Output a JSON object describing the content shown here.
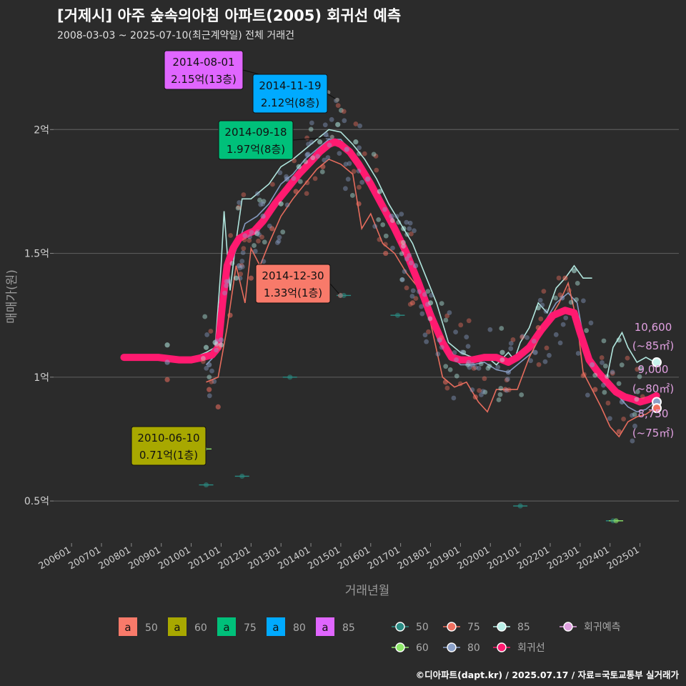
{
  "title": "[거제시] 아주 숲속의아침 아파트(2005) 회귀선 예측",
  "subtitle": "2008-03-03 ~ 2025-07-10(최근계약일) 전체 거래건",
  "footer": "©디아파트(dapt.kr) / 2025.07.17 / 자료=국토교통부 실거래가",
  "chart_data": {
    "type": "scatter",
    "xlabel": "거래년월",
    "ylabel": "매매가(원)",
    "x_ticks": [
      "200601",
      "200701",
      "200801",
      "200901",
      "201001",
      "201101",
      "201201",
      "201301",
      "201401",
      "201501",
      "201601",
      "201701",
      "201801",
      "201901",
      "202001",
      "202101",
      "202201",
      "202301",
      "202401",
      "202501"
    ],
    "y_ticks": [
      {
        "value": 0.5,
        "label": "0.5억"
      },
      {
        "value": 1.0,
        "label": "1억"
      },
      {
        "value": 1.5,
        "label": "1.5억"
      },
      {
        "value": 2.0,
        "label": "2억"
      }
    ],
    "xlim": [
      2005.4,
      2026.3
    ],
    "ylim": [
      0.33,
      2.35
    ],
    "colors": {
      "50": "#2a8c84",
      "60": "#8ee86a",
      "75": "#f07060",
      "80": "#8aa0c8",
      "85": "#b8f0e8",
      "regression": "#ff1a70",
      "prediction": "#e0a0e0"
    },
    "annotations": [
      {
        "date": "2014-08-01",
        "value": "2.15억(13층)",
        "color": "#e066ff",
        "x": 2014.58,
        "y": 2.15
      },
      {
        "date": "2014-11-19",
        "value": "2.12억(8층)",
        "color": "#00aaff",
        "x": 2014.88,
        "y": 2.12
      },
      {
        "date": "2014-09-18",
        "value": "1.97억(8층)",
        "color": "#00c07a",
        "x": 2014.71,
        "y": 1.97
      },
      {
        "date": "2014-12-30",
        "value": "1.33억(1층)",
        "color": "#f87a6a",
        "x": 2014.99,
        "y": 1.33
      },
      {
        "date": "2010-06-10",
        "value": "0.71억(1층)",
        "color": "#a8a800",
        "x": 2010.44,
        "y": 0.71
      }
    ],
    "predictions": [
      {
        "price": "10,600",
        "area": "(~85㎡)",
        "y": 1.06,
        "color": "#c8f4ee"
      },
      {
        "price": "9,000",
        "area": "(~80㎡)",
        "y": 0.9,
        "color": "#8aa0c8"
      },
      {
        "price": "8,750",
        "area": "(~75㎡)",
        "y": 0.875,
        "color": "#f07060"
      }
    ],
    "regression": [
      [
        2007.75,
        1.08
      ],
      [
        2008.4,
        1.08
      ],
      [
        2008.9,
        1.08
      ],
      [
        2009.6,
        1.07
      ],
      [
        2010.0,
        1.07
      ],
      [
        2010.4,
        1.08
      ],
      [
        2010.7,
        1.09
      ],
      [
        2010.9,
        1.12
      ],
      [
        2011.05,
        1.3
      ],
      [
        2011.2,
        1.45
      ],
      [
        2011.4,
        1.52
      ],
      [
        2011.6,
        1.56
      ],
      [
        2011.9,
        1.58
      ],
      [
        2012.1,
        1.59
      ],
      [
        2012.4,
        1.63
      ],
      [
        2012.8,
        1.7
      ],
      [
        2013.2,
        1.76
      ],
      [
        2013.6,
        1.82
      ],
      [
        2014.0,
        1.87
      ],
      [
        2014.3,
        1.91
      ],
      [
        2014.6,
        1.94
      ],
      [
        2014.8,
        1.95
      ],
      [
        2015.0,
        1.94
      ],
      [
        2015.3,
        1.91
      ],
      [
        2015.6,
        1.86
      ],
      [
        2016.0,
        1.78
      ],
      [
        2016.4,
        1.69
      ],
      [
        2016.8,
        1.6
      ],
      [
        2017.2,
        1.5
      ],
      [
        2017.6,
        1.38
      ],
      [
        2018.0,
        1.25
      ],
      [
        2018.4,
        1.14
      ],
      [
        2018.7,
        1.08
      ],
      [
        2019.0,
        1.07
      ],
      [
        2019.4,
        1.07
      ],
      [
        2019.8,
        1.08
      ],
      [
        2020.2,
        1.08
      ],
      [
        2020.6,
        1.06
      ],
      [
        2020.9,
        1.08
      ],
      [
        2021.3,
        1.12
      ],
      [
        2021.7,
        1.19
      ],
      [
        2022.1,
        1.25
      ],
      [
        2022.5,
        1.27
      ],
      [
        2022.8,
        1.26
      ],
      [
        2023.0,
        1.18
      ],
      [
        2023.3,
        1.07
      ],
      [
        2023.6,
        1.02
      ],
      [
        2023.9,
        0.98
      ],
      [
        2024.2,
        0.94
      ],
      [
        2024.5,
        0.92
      ],
      [
        2024.8,
        0.91
      ],
      [
        2025.0,
        0.9
      ],
      [
        2025.3,
        0.91
      ],
      [
        2025.55,
        0.925
      ]
    ],
    "lines": [
      {
        "area": "85",
        "points": [
          [
            2010.1,
            1.08
          ],
          [
            2010.5,
            1.1
          ],
          [
            2010.8,
            1.12
          ],
          [
            2011.0,
            1.45
          ],
          [
            2011.1,
            1.67
          ],
          [
            2011.3,
            1.35
          ],
          [
            2011.5,
            1.55
          ],
          [
            2011.7,
            1.72
          ],
          [
            2012.0,
            1.72
          ],
          [
            2012.3,
            1.75
          ],
          [
            2012.6,
            1.78
          ],
          [
            2013.0,
            1.85
          ],
          [
            2013.4,
            1.88
          ],
          [
            2013.8,
            1.92
          ],
          [
            2014.2,
            1.96
          ],
          [
            2014.6,
            2.0
          ],
          [
            2015.0,
            1.99
          ],
          [
            2015.4,
            1.94
          ],
          [
            2015.8,
            1.88
          ],
          [
            2016.2,
            1.8
          ],
          [
            2016.6,
            1.7
          ],
          [
            2017.0,
            1.62
          ],
          [
            2017.4,
            1.54
          ],
          [
            2017.8,
            1.42
          ],
          [
            2018.2,
            1.3
          ],
          [
            2018.6,
            1.14
          ],
          [
            2019.0,
            1.1
          ],
          [
            2019.4,
            1.08
          ],
          [
            2019.8,
            1.09
          ],
          [
            2020.2,
            1.05
          ],
          [
            2020.6,
            1.1
          ],
          [
            2020.8,
            1.07
          ],
          [
            2021.0,
            1.14
          ],
          [
            2021.3,
            1.2
          ],
          [
            2021.6,
            1.3
          ],
          [
            2021.9,
            1.26
          ],
          [
            2022.2,
            1.36
          ],
          [
            2022.5,
            1.4
          ],
          [
            2022.8,
            1.45
          ],
          [
            2023.1,
            1.4
          ],
          [
            2023.4,
            1.4
          ]
        ]
      },
      {
        "area": "85b",
        "points": [
          [
            2023.9,
            1.0
          ],
          [
            2024.1,
            1.12
          ],
          [
            2024.4,
            1.18
          ],
          [
            2024.6,
            1.12
          ],
          [
            2024.9,
            1.06
          ],
          [
            2025.2,
            1.08
          ],
          [
            2025.5,
            1.06
          ]
        ]
      },
      {
        "area": "80",
        "points": [
          [
            2010.5,
            1.05
          ],
          [
            2010.9,
            1.1
          ],
          [
            2011.1,
            1.42
          ],
          [
            2011.4,
            1.48
          ],
          [
            2011.8,
            1.62
          ],
          [
            2012.2,
            1.65
          ],
          [
            2012.6,
            1.7
          ],
          [
            2013.0,
            1.78
          ],
          [
            2013.4,
            1.82
          ],
          [
            2013.8,
            1.88
          ],
          [
            2014.2,
            1.92
          ],
          [
            2014.6,
            1.96
          ],
          [
            2015.0,
            1.96
          ],
          [
            2015.4,
            1.9
          ],
          [
            2015.8,
            1.82
          ],
          [
            2016.2,
            1.72
          ],
          [
            2016.6,
            1.64
          ],
          [
            2017.0,
            1.56
          ],
          [
            2017.4,
            1.46
          ],
          [
            2017.8,
            1.35
          ],
          [
            2018.2,
            1.22
          ],
          [
            2018.6,
            1.1
          ],
          [
            2019.0,
            1.05
          ],
          [
            2019.4,
            1.05
          ],
          [
            2019.8,
            1.06
          ],
          [
            2020.2,
            1.03
          ],
          [
            2020.6,
            1.02
          ],
          [
            2021.0,
            1.06
          ],
          [
            2021.4,
            1.1
          ],
          [
            2021.8,
            1.22
          ],
          [
            2022.2,
            1.3
          ],
          [
            2022.6,
            1.34
          ],
          [
            2022.9,
            1.3
          ],
          [
            2023.2,
            1.1
          ],
          [
            2023.6,
            1.0
          ],
          [
            2024.0,
            0.96
          ],
          [
            2024.3,
            0.92
          ],
          [
            2024.6,
            0.88
          ],
          [
            2024.9,
            0.86
          ],
          [
            2025.2,
            0.87
          ],
          [
            2025.5,
            0.9
          ]
        ]
      },
      {
        "area": "75",
        "points": [
          [
            2010.5,
            0.98
          ],
          [
            2010.9,
            1.0
          ],
          [
            2011.2,
            1.2
          ],
          [
            2011.5,
            1.45
          ],
          [
            2011.8,
            1.3
          ],
          [
            2012.0,
            1.52
          ],
          [
            2012.3,
            1.45
          ],
          [
            2012.6,
            1.54
          ],
          [
            2013.0,
            1.65
          ],
          [
            2013.4,
            1.72
          ],
          [
            2013.8,
            1.78
          ],
          [
            2014.2,
            1.84
          ],
          [
            2014.6,
            1.88
          ],
          [
            2015.0,
            1.86
          ],
          [
            2015.4,
            1.82
          ],
          [
            2015.7,
            1.6
          ],
          [
            2016.0,
            1.66
          ],
          [
            2016.4,
            1.54
          ],
          [
            2016.8,
            1.5
          ],
          [
            2017.2,
            1.42
          ],
          [
            2017.6,
            1.36
          ],
          [
            2018.0,
            1.22
          ],
          [
            2018.4,
            1.0
          ],
          [
            2018.8,
            0.96
          ],
          [
            2019.2,
            0.98
          ],
          [
            2019.6,
            0.9
          ],
          [
            2019.9,
            0.86
          ],
          [
            2020.2,
            0.95
          ],
          [
            2020.6,
            0.95
          ],
          [
            2020.9,
            0.95
          ],
          [
            2021.3,
            1.08
          ],
          [
            2021.6,
            1.15
          ],
          [
            2022.0,
            1.24
          ],
          [
            2022.3,
            1.3
          ],
          [
            2022.6,
            1.38
          ],
          [
            2022.9,
            1.22
          ],
          [
            2023.1,
            1.02
          ],
          [
            2023.4,
            0.95
          ],
          [
            2023.7,
            0.88
          ],
          [
            2024.0,
            0.8
          ],
          [
            2024.3,
            0.76
          ],
          [
            2024.6,
            0.82
          ],
          [
            2024.9,
            0.84
          ],
          [
            2025.2,
            0.85
          ],
          [
            2025.5,
            0.875
          ]
        ]
      }
    ],
    "scatter_points": [
      {
        "area": "85",
        "points": [
          [
            2009.2,
            1.13
          ],
          [
            2010.5,
            1.12
          ],
          [
            2010.8,
            1.14
          ],
          [
            2011.0,
            1.13
          ],
          [
            2011.5,
            1.4
          ],
          [
            2012.2,
            1.58
          ],
          [
            2013.0,
            1.7
          ],
          [
            2013.6,
            1.85
          ],
          [
            2014.3,
            1.95
          ],
          [
            2014.9,
            2.02
          ],
          [
            2015.5,
            1.95
          ],
          [
            2016.3,
            1.75
          ],
          [
            2017.1,
            1.6
          ],
          [
            2018.0,
            1.3
          ],
          [
            2019.1,
            1.1
          ],
          [
            2020.4,
            1.1
          ],
          [
            2021.6,
            1.28
          ],
          [
            2022.8,
            1.43
          ],
          [
            2024.3,
            1.15
          ],
          [
            2025.5,
            1.06
          ]
        ]
      },
      {
        "area": "80",
        "points": [
          [
            2009.2,
            1.06
          ],
          [
            2010.6,
            1.05
          ],
          [
            2011.0,
            1.15
          ],
          [
            2011.6,
            1.45
          ],
          [
            2012.4,
            1.65
          ],
          [
            2013.2,
            1.8
          ],
          [
            2013.9,
            1.9
          ],
          [
            2014.5,
            1.98
          ],
          [
            2015.2,
            1.92
          ],
          [
            2015.9,
            1.8
          ],
          [
            2016.7,
            1.65
          ],
          [
            2017.5,
            1.45
          ],
          [
            2018.3,
            1.15
          ],
          [
            2019.4,
            1.05
          ],
          [
            2020.6,
            1.02
          ],
          [
            2021.5,
            1.1
          ],
          [
            2022.4,
            1.32
          ],
          [
            2023.4,
            1.05
          ],
          [
            2024.4,
            0.9
          ],
          [
            2025.5,
            0.9
          ]
        ]
      },
      {
        "area": "75",
        "points": [
          [
            2009.2,
            0.99
          ],
          [
            2010.6,
            0.95
          ],
          [
            2010.9,
            0.88
          ],
          [
            2011.3,
            1.25
          ],
          [
            2012.0,
            1.4
          ],
          [
            2012.7,
            1.6
          ],
          [
            2013.5,
            1.75
          ],
          [
            2014.4,
            1.85
          ],
          [
            2014.99,
            1.33
          ],
          [
            2015.6,
            1.7
          ],
          [
            2016.5,
            1.5
          ],
          [
            2017.4,
            1.3
          ],
          [
            2018.5,
            0.98
          ],
          [
            2019.5,
            0.92
          ],
          [
            2020.5,
            0.95
          ],
          [
            2021.6,
            1.2
          ],
          [
            2022.5,
            1.4
          ],
          [
            2023.5,
            0.95
          ],
          [
            2024.3,
            0.78
          ],
          [
            2025.5,
            0.875
          ]
        ]
      },
      {
        "area": "50",
        "points": [
          [
            2010.5,
            0.565
          ],
          [
            2011.7,
            0.6
          ],
          [
            2013.3,
            1.0
          ],
          [
            2015.1,
            1.33
          ],
          [
            2016.9,
            1.25
          ],
          [
            2021.0,
            0.48
          ],
          [
            2024.1,
            0.42
          ]
        ]
      },
      {
        "area": "60",
        "points": [
          [
            2010.44,
            0.71
          ],
          [
            2024.2,
            0.42
          ]
        ]
      }
    ],
    "legend_box": [
      {
        "key": "50",
        "glyph": "a",
        "color": "#f87a6a"
      },
      {
        "key": "60",
        "glyph": "a",
        "color": "#a8a800"
      },
      {
        "key": "75",
        "glyph": "a",
        "color": "#00c07a"
      },
      {
        "key": "80",
        "glyph": "a",
        "color": "#00aaff"
      },
      {
        "key": "85",
        "glyph": "a",
        "color": "#e066ff"
      }
    ],
    "legend_series": [
      {
        "key": "50",
        "color": "#2a8c84"
      },
      {
        "key": "75",
        "color": "#f07060"
      },
      {
        "key": "85",
        "color": "#b8f0e8"
      },
      {
        "key": "회귀예측",
        "color": "#e0a0e0"
      },
      {
        "key": "60",
        "color": "#8ee86a"
      },
      {
        "key": "80",
        "color": "#8aa0c8"
      },
      {
        "key": "회귀선",
        "color": "#ff1a70"
      }
    ]
  }
}
